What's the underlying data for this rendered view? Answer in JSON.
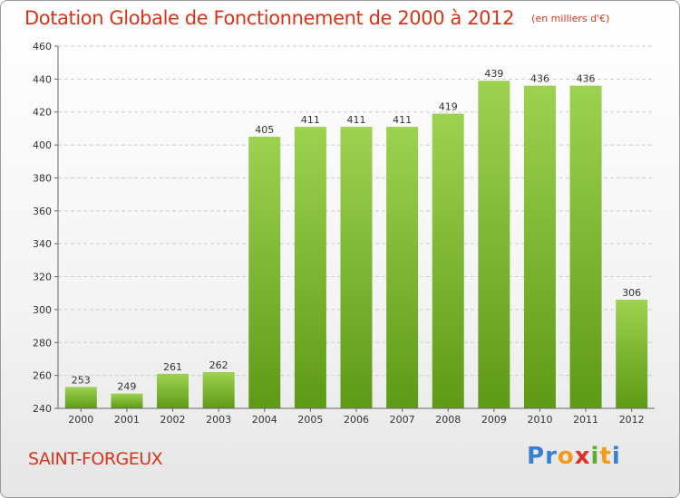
{
  "title": "Dotation Globale de Fonctionnement de 2000 à 2012",
  "unit": "(en milliers d'€)",
  "commune": "SAINT-FORGEUX",
  "logo": {
    "text": "Proxiti",
    "colors": [
      "#3b7fd1",
      "#3b7fd1",
      "#f29a1d",
      "#e0302a",
      "#5bb033",
      "#f29a1d",
      "#3b7fd1"
    ]
  },
  "colors": {
    "title": "#d9341a",
    "bar_top": "#9dd250",
    "bar_bottom": "#5e9a16",
    "grid": "#cccccc"
  },
  "chart_data": {
    "type": "bar",
    "categories": [
      "2000",
      "2001",
      "2002",
      "2003",
      "2004",
      "2005",
      "2006",
      "2007",
      "2008",
      "2009",
      "2010",
      "2011",
      "2012"
    ],
    "values": [
      253,
      249,
      261,
      262,
      405,
      411,
      411,
      411,
      419,
      439,
      436,
      436,
      306
    ],
    "ylim": [
      240,
      460
    ],
    "yticks": [
      240,
      260,
      280,
      300,
      320,
      340,
      360,
      380,
      400,
      420,
      440,
      460
    ],
    "grid": true,
    "data_labels": true
  }
}
